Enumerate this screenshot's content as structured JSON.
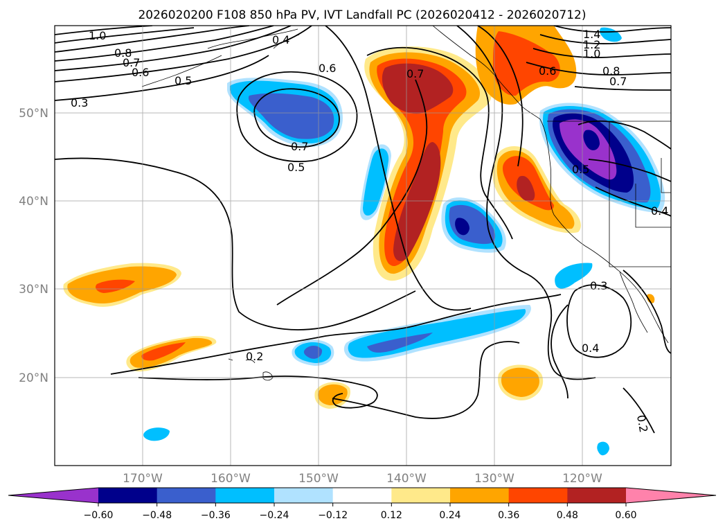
{
  "title": "2026020200 F108 850 hPa PV, IVT Landfall PC (2026020412 - 2026020712)",
  "lat_ticks": [
    "50°N",
    "40°N",
    "30°N",
    "20°N"
  ],
  "lon_ticks": [
    "170°W",
    "160°W",
    "150°W",
    "140°W",
    "130°W",
    "120°W"
  ],
  "colorbar": {
    "ticks": [
      "−0.60",
      "−0.48",
      "−0.36",
      "−0.24",
      "−0.12",
      "0.12",
      "0.24",
      "0.36",
      "0.48",
      "0.60"
    ],
    "colors": [
      "#9932cc",
      "#00008b",
      "#3a5fcd",
      "#00bfff",
      "#b0e2ff",
      "#ffffff",
      "#ffe98a",
      "#ffa500",
      "#ff4500",
      "#b22222",
      "#ff82ab"
    ]
  },
  "contour_labels": [
    "1.0",
    "0.8",
    "0.7",
    "0.6",
    "0.5",
    "0.3",
    "0.4",
    "0.6",
    "0.7",
    "0.5",
    "0.7",
    "0.6",
    "1.4",
    "1.2",
    "1.0",
    "0.8",
    "0.7",
    "0.5",
    "0.4",
    "0.3",
    "0.4",
    "0.2",
    "0.2"
  ],
  "fill_colors": {
    "yellow": "#ffe98a",
    "orange": "#ffa500",
    "red": "#ff4500",
    "darkred": "#b22222",
    "lightblue": "#b0e2ff",
    "cyan": "#00bfff",
    "blue": "#3a5fcd",
    "navy": "#00008b",
    "purple": "#9932cc"
  }
}
